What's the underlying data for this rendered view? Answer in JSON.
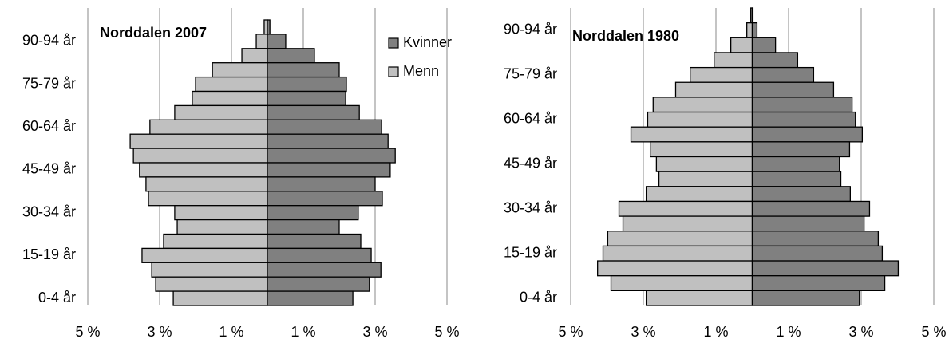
{
  "chart_data": [
    {
      "type": "bar",
      "title": "Norddalen 2007",
      "categories": [
        "0-4 år",
        null,
        null,
        "15-19 år",
        null,
        null,
        "30-34 år",
        null,
        null,
        "45-49 år",
        null,
        null,
        "60-64 år",
        null,
        null,
        "75-79 år",
        null,
        null,
        "90-94 år",
        null
      ],
      "series": [
        {
          "name": "Kvinner",
          "color": "#808080",
          "values": [
            2.38,
            2.84,
            3.16,
            2.89,
            2.6,
            2.0,
            2.53,
            3.2,
            3.0,
            3.42,
            3.56,
            3.36,
            3.18,
            2.56,
            2.18,
            2.2,
            2.0,
            1.31,
            0.51,
            0.07
          ]
        },
        {
          "name": "Menn",
          "color": "#c0c0c0",
          "values": [
            -2.62,
            -3.11,
            -3.22,
            -3.49,
            -2.89,
            -2.51,
            -2.58,
            -3.31,
            -3.38,
            -3.56,
            -3.73,
            -3.82,
            -3.27,
            -2.58,
            -2.09,
            -2.0,
            -1.53,
            -0.71,
            -0.31,
            -0.09
          ]
        }
      ],
      "xlim": [
        -5,
        5
      ],
      "xticks": [
        {
          "value": -5,
          "label": "5 %"
        },
        {
          "value": -3,
          "label": "3 %"
        },
        {
          "value": -1,
          "label": "1 %"
        },
        {
          "value": 1,
          "label": "1 %"
        },
        {
          "value": 3,
          "label": "3 %"
        },
        {
          "value": 5,
          "label": "5 %"
        }
      ],
      "grid": true,
      "legend": "upper right"
    },
    {
      "type": "bar",
      "title": "Norddalen 1980",
      "categories": [
        "0-4 år",
        null,
        null,
        "15-19 år",
        null,
        null,
        "30-34 år",
        null,
        null,
        "45-49 år",
        null,
        null,
        "60-64 år",
        null,
        null,
        "75-79 år",
        null,
        null,
        "90-94 år",
        null
      ],
      "series": [
        {
          "name": "Kvinner",
          "color": "#808080",
          "values": [
            2.95,
            3.65,
            4.02,
            3.58,
            3.47,
            3.08,
            3.23,
            2.7,
            2.44,
            2.4,
            2.68,
            3.03,
            2.84,
            2.75,
            2.24,
            1.69,
            1.25,
            0.64,
            0.13,
            0.02
          ]
        },
        {
          "name": "Menn",
          "color": "#c0c0c0",
          "values": [
            -2.92,
            -3.89,
            -4.26,
            -4.11,
            -3.98,
            -3.56,
            -3.67,
            -2.92,
            -2.57,
            -2.64,
            -2.81,
            -3.34,
            -2.88,
            -2.73,
            -2.11,
            -1.71,
            -1.05,
            -0.59,
            -0.15,
            -0.04
          ]
        }
      ],
      "xlim": [
        -5,
        5
      ],
      "xticks": [
        {
          "value": -5,
          "label": "5 %"
        },
        {
          "value": -3,
          "label": "3 %"
        },
        {
          "value": -1,
          "label": "1 %"
        },
        {
          "value": 1,
          "label": "1 %"
        },
        {
          "value": 3,
          "label": "3 %"
        },
        {
          "value": 5,
          "label": "5 %"
        }
      ],
      "grid": true
    }
  ]
}
